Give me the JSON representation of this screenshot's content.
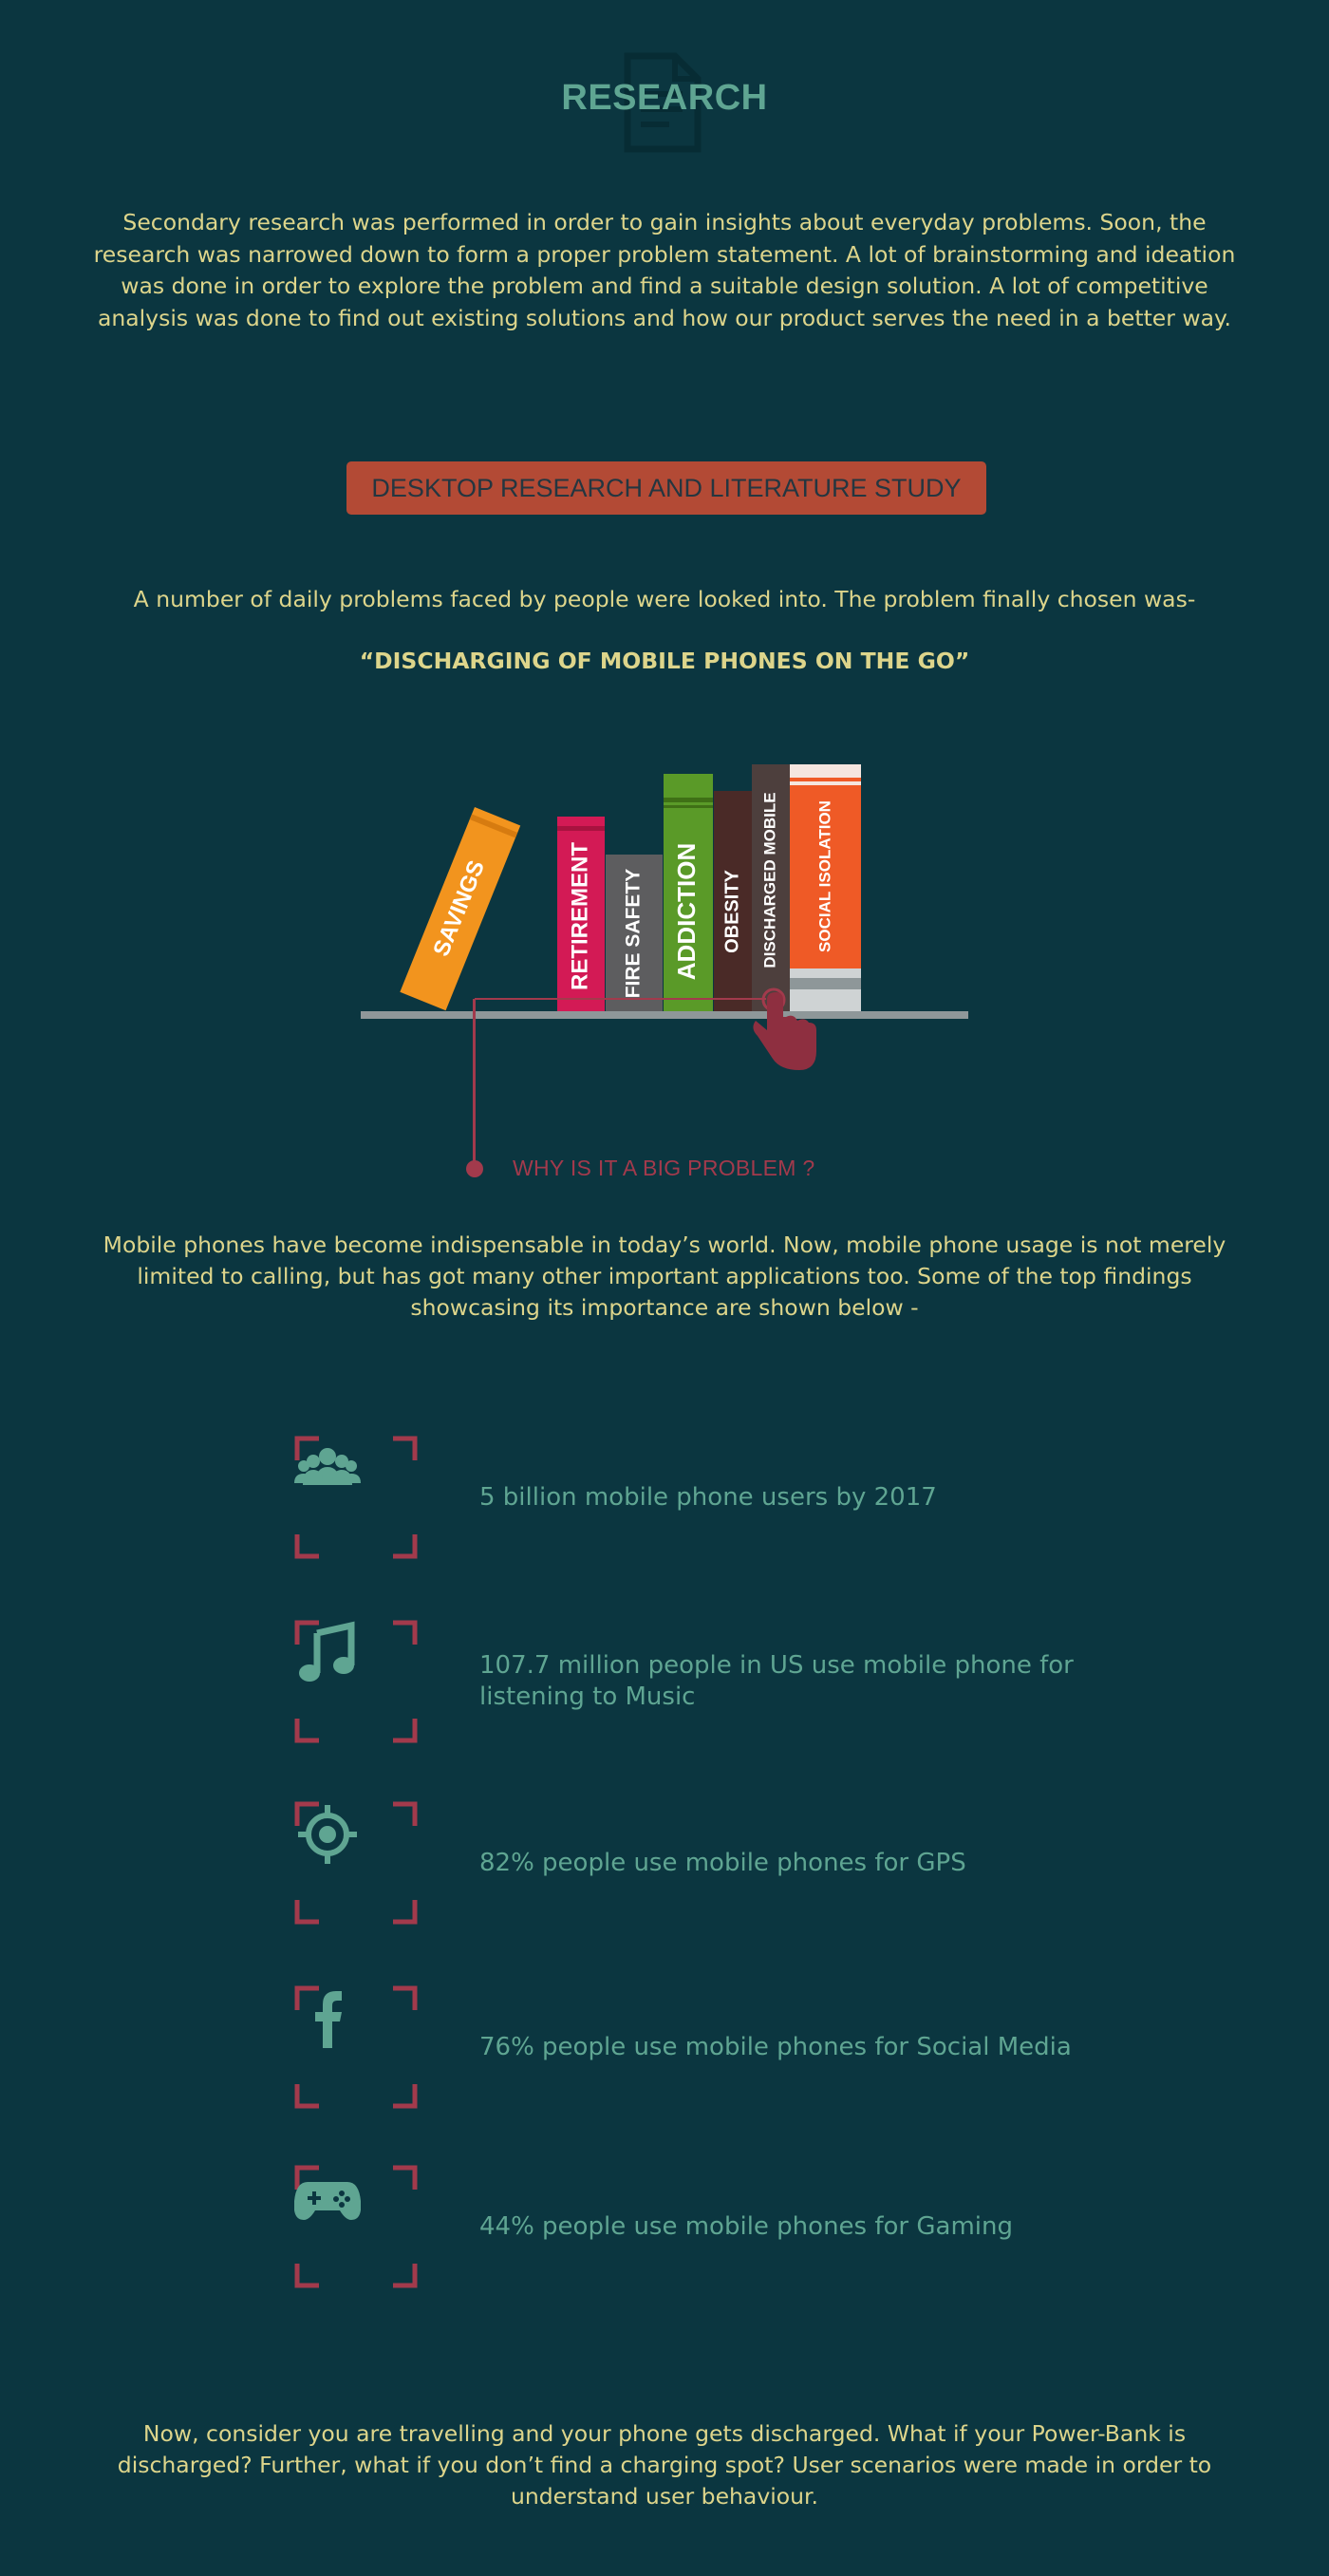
{
  "header": {
    "title": "RESEARCH",
    "intro": "Secondary research was performed in order to gain insights about everyday problems. Soon, the research was narrowed down to form a proper problem statement. A lot of brainstorming and ideation was done in order to explore the problem and find a suitable design solution. A lot of competitive analysis was done to find out existing solutions and how our product serves the need in a better way."
  },
  "section": {
    "banner_label": "DESKTOP RESEARCH AND LITERATURE STUDY",
    "problem_intro": "A number of daily problems faced by people were looked into. The problem finally chosen was-",
    "problem_quote": "“DISCHARGING OF MOBILE PHONES ON THE GO”"
  },
  "bookshelf": {
    "books": [
      {
        "label": "SAVINGS",
        "color": "#f2941e"
      },
      {
        "label": "RETIREMENT",
        "color": "#d31a55"
      },
      {
        "label": "FIRE SAFETY",
        "color": "#5d5d5f"
      },
      {
        "label": "ADDICTION",
        "color": "#5a9a28"
      },
      {
        "label": "OBESITY",
        "color": "#4a2a27"
      },
      {
        "label": "DISCHARGED MOBILE",
        "color": "#4d3f3d"
      },
      {
        "label": "SOCIAL ISOLATION",
        "color": "#ef5a26"
      }
    ]
  },
  "why": {
    "label": "WHY IS IT A BIG PROBLEM ?",
    "paragraph": "Mobile phones have become indispensable in today’s world. Now, mobile phone usage is not merely limited to calling, but has got many other important applications too. Some of the top findings showcasing its importance are shown below -"
  },
  "findings": [
    {
      "icon": "users-group-icon",
      "text": "5 billion mobile phone users by 2017"
    },
    {
      "icon": "music-note-icon",
      "text": "107.7 million people in US use mobile phone for listening to Music"
    },
    {
      "icon": "gps-target-icon",
      "text": "82% people use mobile phones for GPS"
    },
    {
      "icon": "facebook-icon",
      "text": "76% people use mobile phones for Social Media"
    },
    {
      "icon": "gamepad-icon",
      "text": "44% people use mobile phones for Gaming"
    }
  ],
  "closing": {
    "paragraph": "Now, consider you are travelling and your phone gets discharged. What if your Power-Bank is discharged? Further, what if you don’t find a charging spot? User scenarios were made in order to understand user behaviour."
  },
  "colors": {
    "background": "#0b3640",
    "accent_teal": "#5fa592",
    "body_text": "#ddd58b",
    "banner": "#b34a35",
    "crimson": "#a23a4c"
  }
}
